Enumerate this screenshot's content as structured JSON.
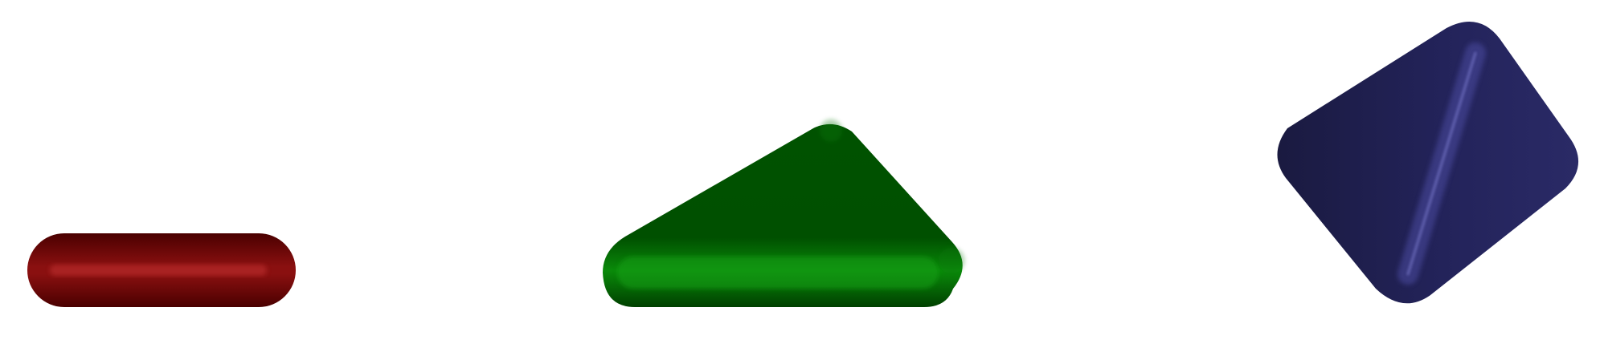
{
  "shapes": [
    {
      "id": "red-capsule",
      "kind": "capsule",
      "colors": {
        "base": "#6f0000",
        "dark": "#4a0000",
        "highlight": "#b33030"
      }
    },
    {
      "id": "green-triangle",
      "kind": "triangle",
      "colors": {
        "base": "#005500",
        "dark": "#003d00",
        "highlight": "#3fc03f"
      }
    },
    {
      "id": "blue-diamond",
      "kind": "quadrilateral",
      "colors": {
        "base": "#23235a",
        "dark": "#17173f",
        "highlight": "#5f5fb0"
      }
    }
  ]
}
